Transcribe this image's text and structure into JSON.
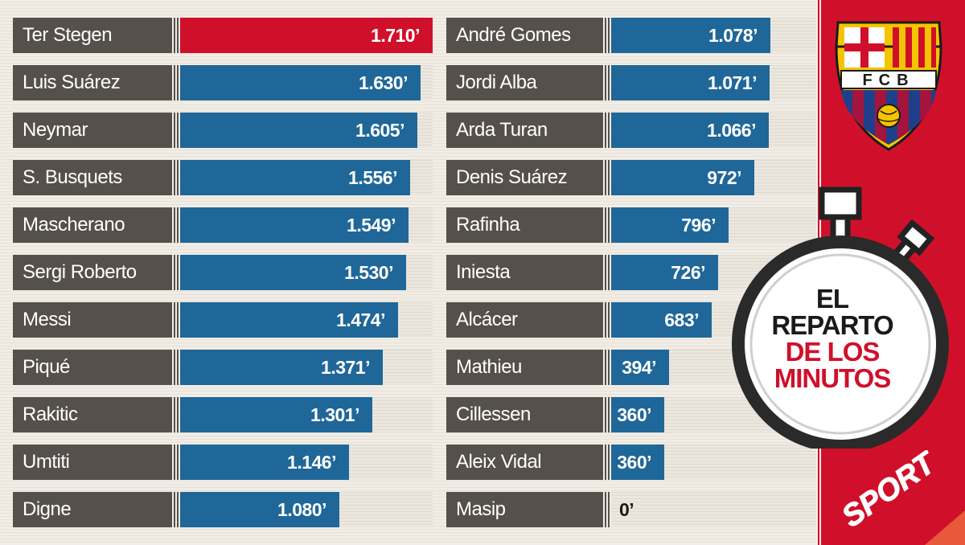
{
  "chart_data": {
    "type": "bar",
    "title_lines": [
      "EL",
      "REPARTO",
      "DE LOS",
      "MINUTOS"
    ],
    "brand": "SPORT",
    "crest_text": "FCB",
    "max_value": 1710,
    "columns": [
      {
        "players": [
          {
            "name": "Ter Stegen",
            "value": 1710,
            "label": "1.710’",
            "highlight": true
          },
          {
            "name": "Luis Suárez",
            "value": 1630,
            "label": "1.630’"
          },
          {
            "name": "Neymar",
            "value": 1605,
            "label": "1.605’"
          },
          {
            "name": "S. Busquets",
            "value": 1556,
            "label": "1.556’"
          },
          {
            "name": "Mascherano",
            "value": 1549,
            "label": "1.549’"
          },
          {
            "name": "Sergi Roberto",
            "value": 1530,
            "label": "1.530’"
          },
          {
            "name": "Messi",
            "value": 1474,
            "label": "1.474’"
          },
          {
            "name": "Piqué",
            "value": 1371,
            "label": "1.371’"
          },
          {
            "name": "Rakitic",
            "value": 1301,
            "label": "1.301’"
          },
          {
            "name": "Umtiti",
            "value": 1146,
            "label": "1.146’"
          },
          {
            "name": "Digne",
            "value": 1080,
            "label": "1.080’"
          }
        ]
      },
      {
        "players": [
          {
            "name": "André Gomes",
            "value": 1078,
            "label": "1.078’"
          },
          {
            "name": "Jordi Alba",
            "value": 1071,
            "label": "1.071’"
          },
          {
            "name": "Arda Turan",
            "value": 1066,
            "label": "1.066’"
          },
          {
            "name": "Denis Suárez",
            "value": 972,
            "label": "972’"
          },
          {
            "name": "Rafinha",
            "value": 796,
            "label": "796’"
          },
          {
            "name": "Iniesta",
            "value": 726,
            "label": "726’"
          },
          {
            "name": "Alcácer",
            "value": 683,
            "label": "683’"
          },
          {
            "name": "Mathieu",
            "value": 394,
            "label": "394’"
          },
          {
            "name": "Cillessen",
            "value": 360,
            "label": "360’"
          },
          {
            "name": "Aleix Vidal",
            "value": 360,
            "label": "360’"
          },
          {
            "name": "Masip",
            "value": 0,
            "label": "0’"
          }
        ]
      }
    ]
  },
  "colors": {
    "bar": "#1f6798",
    "highlight": "#d0102a",
    "name_box": "#55504b",
    "accent_red": "#d0102a"
  }
}
